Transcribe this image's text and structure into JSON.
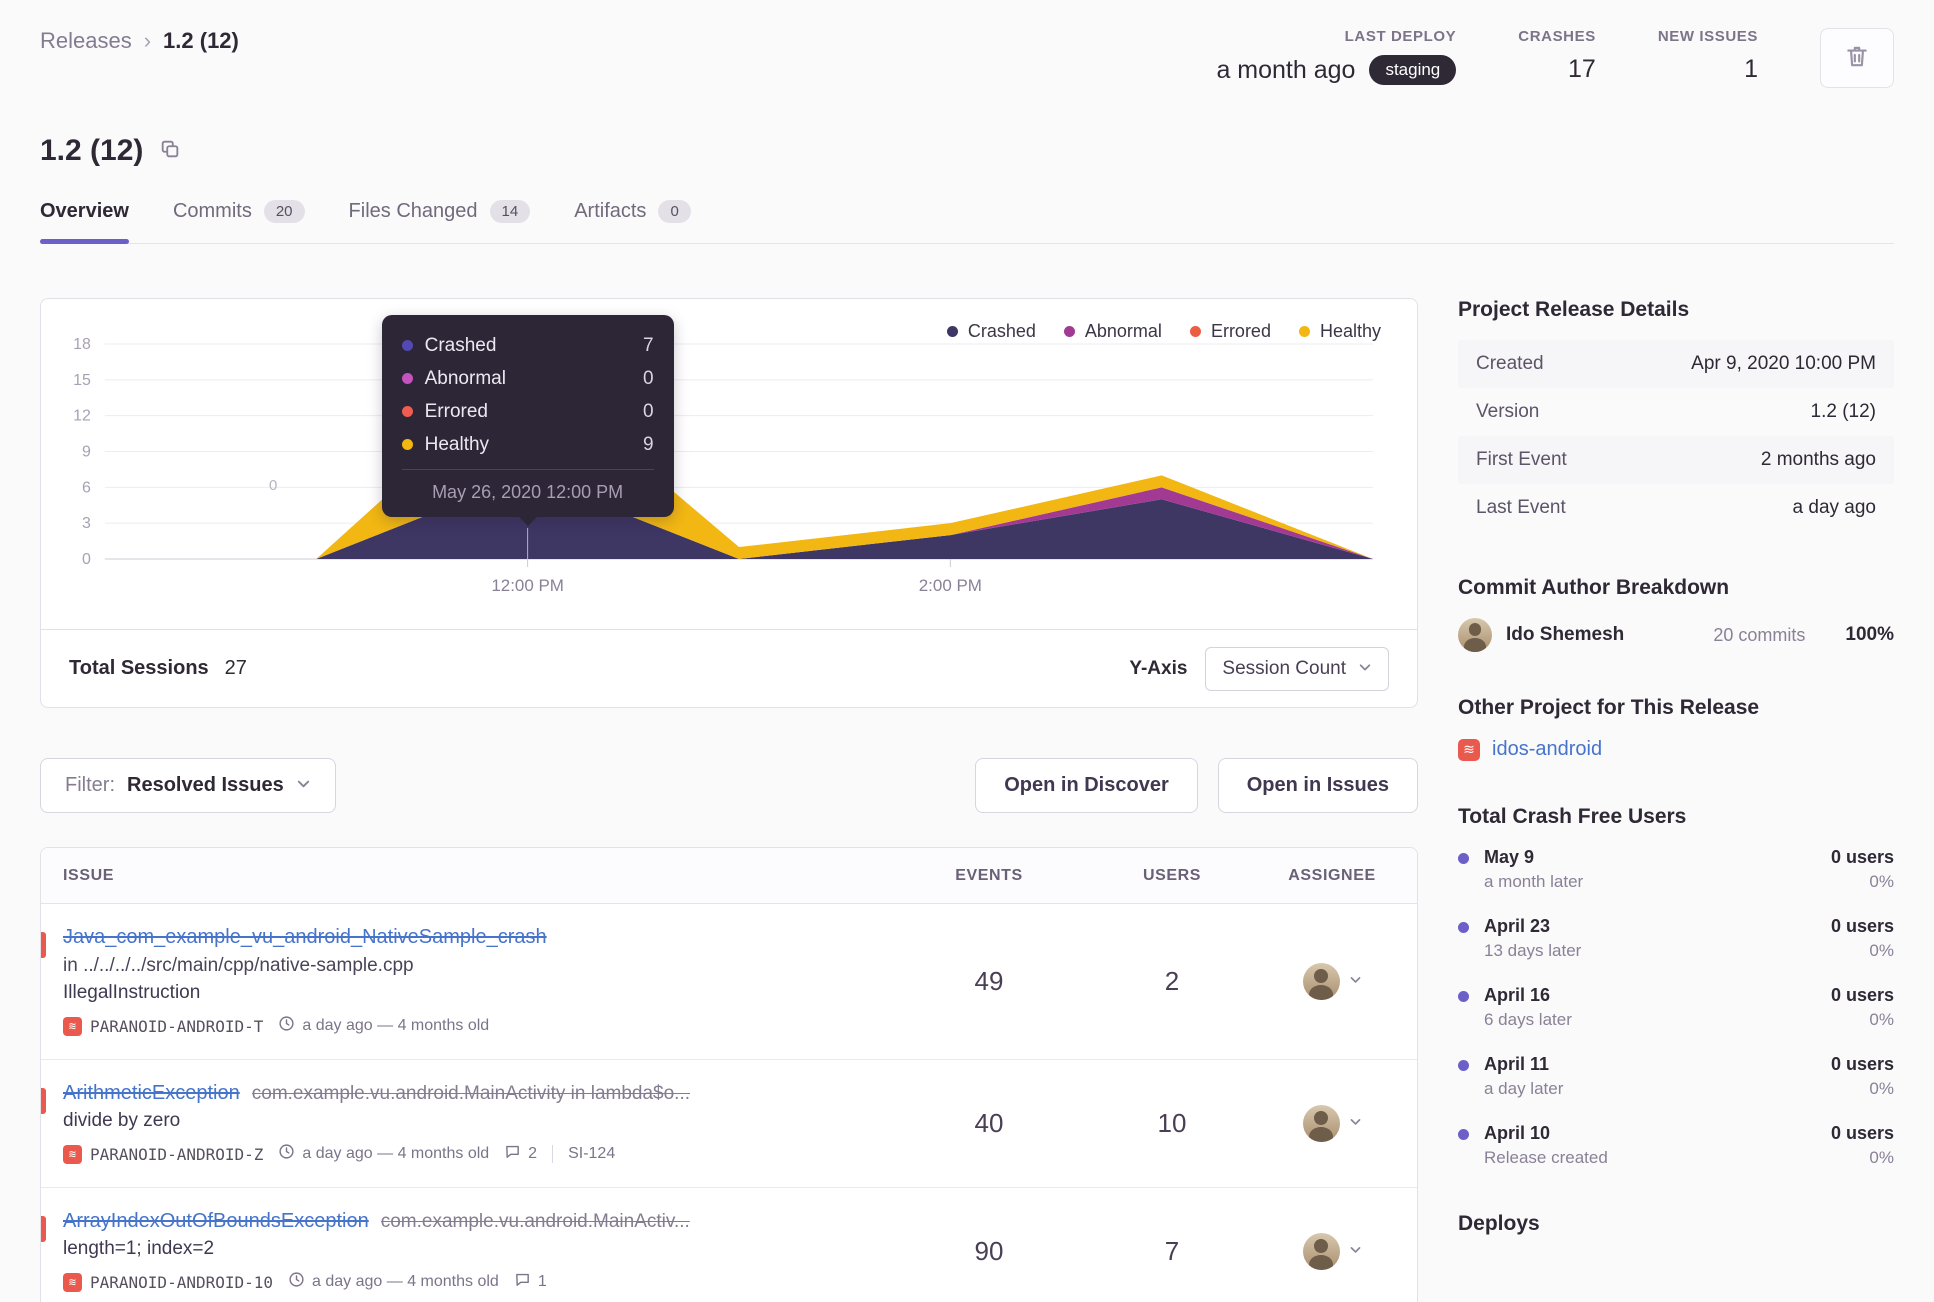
{
  "breadcrumb": {
    "root": "Releases",
    "separator": "›",
    "current": "1.2 (12)"
  },
  "top_stats": {
    "last_deploy": {
      "label": "LAST DEPLOY",
      "value": "a month ago",
      "env_badge": "staging"
    },
    "crashes": {
      "label": "CRASHES",
      "value": "17"
    },
    "new_issues": {
      "label": "NEW ISSUES",
      "value": "1"
    }
  },
  "page": {
    "title": "1.2 (12)"
  },
  "tabs": {
    "overview": {
      "label": "Overview"
    },
    "commits": {
      "label": "Commits",
      "count": "20"
    },
    "files_changed": {
      "label": "Files Changed",
      "count": "14"
    },
    "artifacts": {
      "label": "Artifacts",
      "count": "0"
    }
  },
  "chart_data": {
    "type": "area",
    "stacked": true,
    "x": [
      "10:00 AM",
      "11:00 AM",
      "12:00 PM",
      "1:00 PM",
      "2:00 PM",
      "3:00 PM",
      "4:00 PM"
    ],
    "series": [
      {
        "name": "Crashed",
        "color": "#3e3663",
        "values": [
          0,
          0,
          7,
          0,
          2,
          5,
          0
        ]
      },
      {
        "name": "Abnormal",
        "color": "#a23a94",
        "values": [
          0,
          0,
          0,
          0,
          0,
          1,
          0
        ]
      },
      {
        "name": "Errored",
        "color": "#ec5e44",
        "values": [
          0,
          0,
          0,
          0,
          0,
          0,
          0
        ]
      },
      {
        "name": "Healthy",
        "color": "#f2b712",
        "values": [
          0,
          0,
          9,
          1,
          1,
          1,
          0
        ]
      }
    ],
    "ylim": [
      0,
      18
    ],
    "yticks": [
      0,
      3,
      6,
      9,
      12,
      15,
      18
    ],
    "xticks": [
      "12:00 PM",
      "2:00 PM"
    ],
    "legend_position": "top-right",
    "tooltip_anchor_x": "12:00 PM",
    "annotation": "0",
    "total_sessions": 27
  },
  "tooltip": {
    "rows": [
      {
        "name": "Crashed",
        "value": "7",
        "color": "#5349b5"
      },
      {
        "name": "Abnormal",
        "value": "0",
        "color": "#c553be"
      },
      {
        "name": "Errored",
        "value": "0",
        "color": "#f05c50"
      },
      {
        "name": "Healthy",
        "value": "9",
        "color": "#f2b712"
      }
    ],
    "timestamp": "May 26, 2020 12:00 PM"
  },
  "chart_footer": {
    "total_sessions_label": "Total Sessions",
    "total_sessions_value": "27",
    "y_axis_label": "Y-Axis",
    "y_axis_value": "Session Count"
  },
  "filter_bar": {
    "filter_label": "Filter:",
    "filter_value": "Resolved Issues",
    "open_in_discover": "Open in Discover",
    "open_in_issues": "Open in Issues"
  },
  "issues": {
    "headers": {
      "issue": "ISSUE",
      "events": "EVENTS",
      "users": "USERS",
      "assignee": "ASSIGNEE"
    },
    "rows": [
      {
        "title": "Java_com_example_vu_android_NativeSample_crash",
        "culprit": "",
        "location": "in ../../../../src/main/cpp/native-sample.cpp",
        "message": "IllegalInstruction",
        "short_id": "PARANOID-ANDROID-T",
        "age": "a day ago — 4 months old",
        "comments": "",
        "linked_id": "",
        "events": "49",
        "users": "2"
      },
      {
        "title": "ArithmeticException",
        "culprit": "com.example.vu.android.MainActivity in lambda$o...",
        "location": "",
        "message": "divide by zero",
        "short_id": "PARANOID-ANDROID-Z",
        "age": "a day ago — 4 months old",
        "comments": "2",
        "linked_id": "SI-124",
        "events": "40",
        "users": "10"
      },
      {
        "title": "ArrayIndexOutOfBoundsException",
        "culprit": "com.example.vu.android.MainActiv...",
        "location": "",
        "message": "length=1; index=2",
        "short_id": "PARANOID-ANDROID-10",
        "age": "a day ago — 4 months old",
        "comments": "1",
        "linked_id": "",
        "events": "90",
        "users": "7"
      }
    ]
  },
  "sidebar": {
    "release_details": {
      "title": "Project Release Details",
      "rows": [
        {
          "label": "Created",
          "value": "Apr 9, 2020 10:00 PM"
        },
        {
          "label": "Version",
          "value": "1.2 (12)"
        },
        {
          "label": "First Event",
          "value": "2 months ago"
        },
        {
          "label": "Last Event",
          "value": "a day ago"
        }
      ]
    },
    "commit_authors": {
      "title": "Commit Author Breakdown",
      "author": {
        "name": "Ido Shemesh",
        "commits": "20 commits",
        "percent": "100%"
      }
    },
    "other_projects": {
      "title": "Other Project for This Release",
      "project": "idos-android"
    },
    "crash_free": {
      "title": "Total Crash Free Users",
      "items": [
        {
          "date": "May 9",
          "caption": "a month later",
          "users": "0 users",
          "percent": "0%"
        },
        {
          "date": "April 23",
          "caption": "13 days later",
          "users": "0 users",
          "percent": "0%"
        },
        {
          "date": "April 16",
          "caption": "6 days later",
          "users": "0 users",
          "percent": "0%"
        },
        {
          "date": "April 11",
          "caption": "a day later",
          "users": "0 users",
          "percent": "0%"
        },
        {
          "date": "April 10",
          "caption": "Release created",
          "users": "0 users",
          "percent": "0%"
        }
      ]
    },
    "deploys": {
      "title": "Deploys"
    }
  }
}
